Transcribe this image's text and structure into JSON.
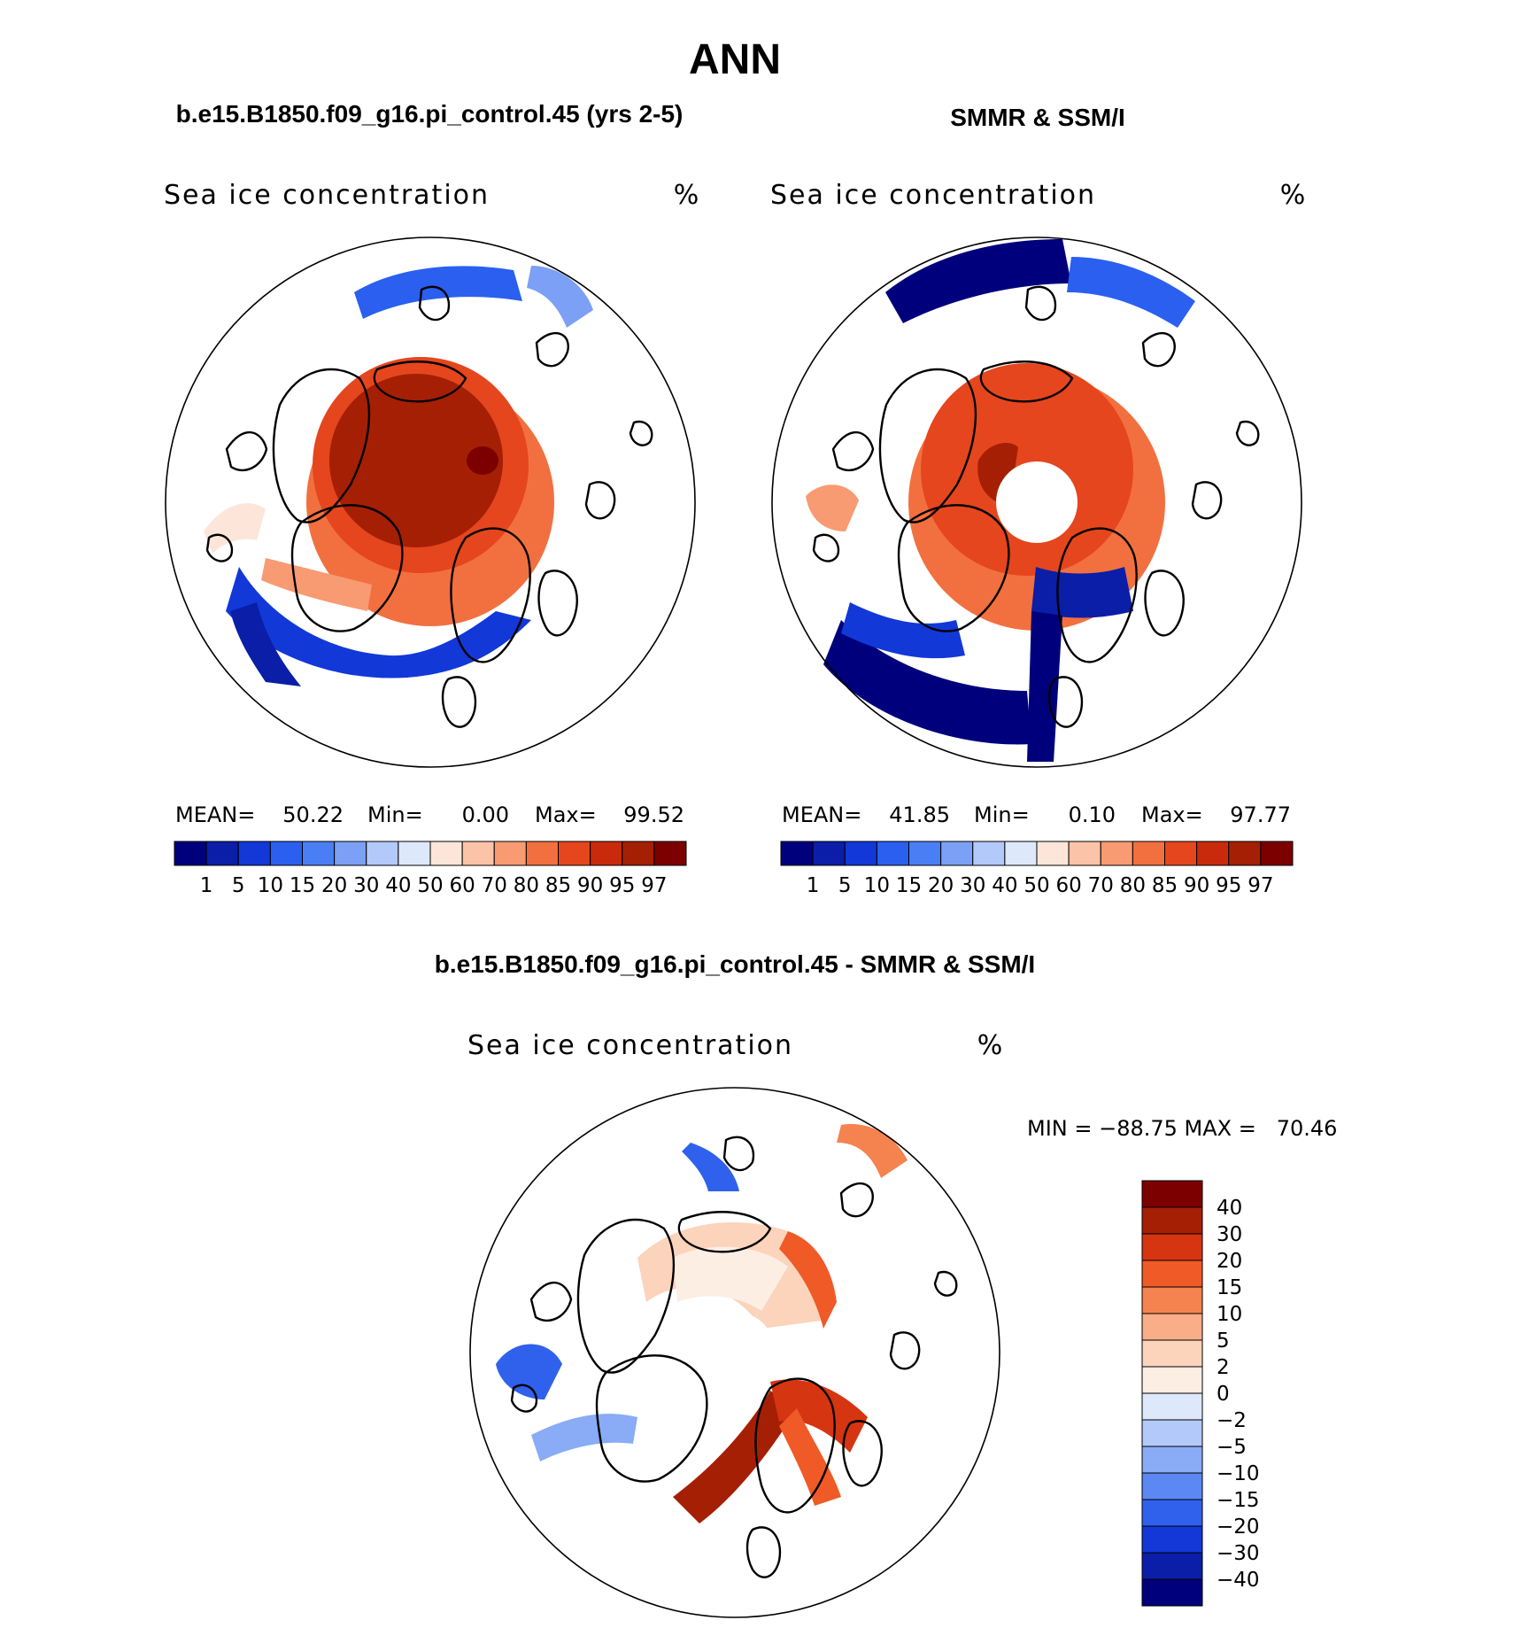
{
  "chart_data": {
    "type": "heatmap",
    "title": "ANN",
    "panels": [
      {
        "id": "model",
        "heading": "b.e15.B1850.f09_g16.pi_control.45 (yrs 2-5)",
        "field_label": "Sea ice concentration",
        "units": "%",
        "stats": {
          "mean_label": "MEAN=",
          "mean": "50.22",
          "min_label": "Min=",
          "min": "0.00",
          "max_label": "Max=",
          "max": "99.52"
        }
      },
      {
        "id": "obs",
        "heading": "SMMR & SSM/I",
        "field_label": "Sea ice concentration",
        "units": "%",
        "stats": {
          "mean_label": "MEAN=",
          "mean": "41.85",
          "min_label": "Min=",
          "min": "0.10",
          "max_label": "Max=",
          "max": "97.77"
        }
      },
      {
        "id": "diff",
        "heading": "b.e15.B1850.f09_g16.pi_control.45 - SMMR & SSM/I",
        "field_label": "Sea ice concentration",
        "units": "%",
        "range_text": "MIN = −88.75 MAX =   70.46"
      }
    ],
    "concentration_levels": [
      "1",
      "5",
      "10",
      "15",
      "20",
      "30",
      "40",
      "50",
      "60",
      "70",
      "80",
      "85",
      "90",
      "95",
      "97"
    ],
    "concentration_colors": [
      "#00007d",
      "#0a1ea8",
      "#1238d8",
      "#2a5ff0",
      "#4a7ef5",
      "#7ba0f5",
      "#b3c9f9",
      "#dde8fb",
      "#fde6d9",
      "#fbc3a7",
      "#f89a72",
      "#f2703f",
      "#e5461d",
      "#c92a0c",
      "#a51f05",
      "#7c0000"
    ],
    "difference_levels": [
      "40",
      "30",
      "20",
      "15",
      "10",
      "5",
      "2",
      "0",
      "−2",
      "−5",
      "−10",
      "−15",
      "−20",
      "−30",
      "−40"
    ],
    "difference_colors": [
      "#7c0000",
      "#a51f05",
      "#d63511",
      "#ef5a26",
      "#f5834f",
      "#f9ad88",
      "#fcd3bb",
      "#fdeee4",
      "#dde8fb",
      "#b3c9f9",
      "#8aabf6",
      "#5b88f2",
      "#2f61ec",
      "#1238d8",
      "#0a1ea8",
      "#00007d"
    ]
  }
}
